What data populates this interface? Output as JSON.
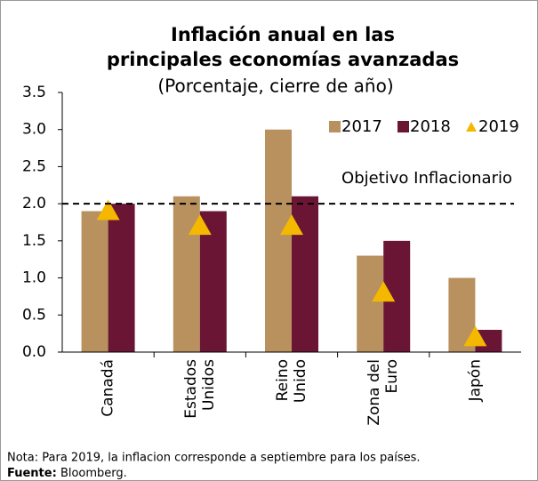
{
  "chart_data": {
    "type": "bar",
    "title": [
      "Inflación anual en las",
      "principales economías avanzadas"
    ],
    "subtitle": "(Porcentaje, cierre de año)",
    "categories": [
      [
        "Canadá"
      ],
      [
        "Estados",
        "Unidos"
      ],
      [
        "Reino",
        "Unido"
      ],
      [
        "Zona del",
        "Euro"
      ],
      [
        "Japón"
      ]
    ],
    "series": [
      {
        "name": "2017",
        "color": "#b8915f",
        "mark": "bar",
        "values": [
          1.9,
          2.1,
          3.0,
          1.3,
          1.0
        ]
      },
      {
        "name": "2018",
        "color": "#6b1535",
        "mark": "bar",
        "values": [
          2.0,
          1.9,
          2.1,
          1.5,
          0.3
        ]
      },
      {
        "name": "2019",
        "color": "#f5b800",
        "mark": "triangle",
        "values": [
          1.9,
          1.7,
          1.7,
          0.8,
          0.2
        ]
      }
    ],
    "ylim": [
      0,
      3.5
    ],
    "yticks": [
      {
        "value": 0,
        "label": "0.0"
      },
      {
        "value": 0.5,
        "label": "0.5"
      },
      {
        "value": 1,
        "label": "1.0"
      },
      {
        "value": 1.5,
        "label": "1.5"
      },
      {
        "value": 2,
        "label": "2.0"
      },
      {
        "value": 2.5,
        "label": "2.5"
      },
      {
        "value": 3,
        "label": "3.0"
      },
      {
        "value": 3.5,
        "label": "3.5"
      }
    ],
    "reference_line": {
      "value": 2,
      "label": "Objetivo Inflacionario"
    },
    "legend": "upper right",
    "grid": false
  },
  "footer": {
    "note": "Nota: Para 2019, la inflacion corresponde a septiembre para los países.",
    "source_label": "Fuente:",
    "source": "Bloomberg."
  }
}
